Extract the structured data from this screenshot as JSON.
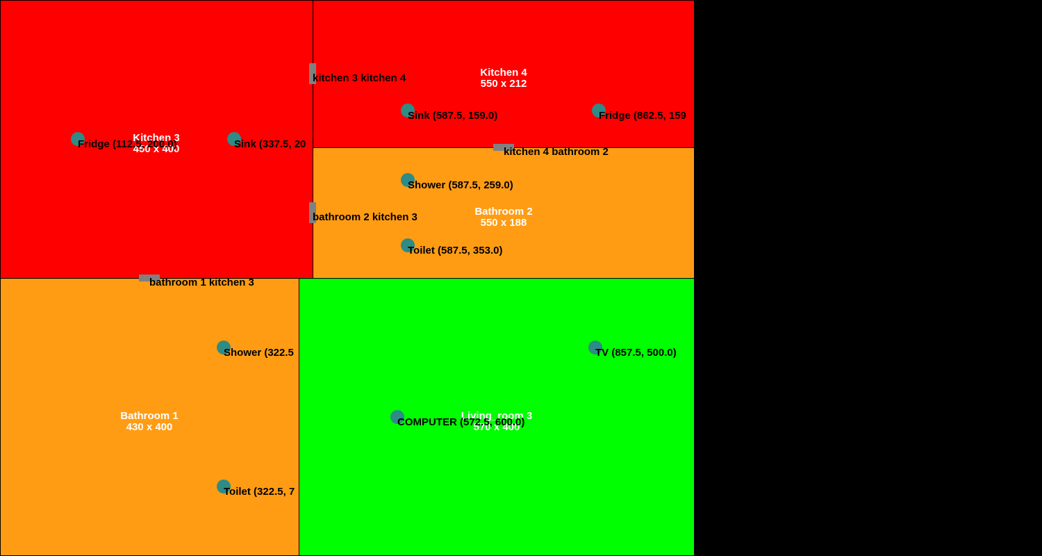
{
  "colors": {
    "kitchen": "#ff0000",
    "bathroom": "#ff9c14",
    "living_room": "#00ff00",
    "fixture": "#2e8b85",
    "door": "#808080",
    "background": "#000000"
  },
  "rooms": [
    {
      "id": "kitchen-3",
      "name": "Kitchen 3",
      "size": "450 x 400",
      "type": "kitchen"
    },
    {
      "id": "kitchen-4",
      "name": "Kitchen 4",
      "size": "550 x 212",
      "type": "kitchen"
    },
    {
      "id": "bathroom-2",
      "name": "Bathroom 2",
      "size": "550 x 188",
      "type": "bathroom"
    },
    {
      "id": "bathroom-1",
      "name": "Bathroom 1",
      "size": "430 x 400",
      "type": "bathroom"
    },
    {
      "id": "living-room-3",
      "name": "Living_room 3",
      "size": "570 x 400",
      "type": "living_room"
    }
  ],
  "doors": [
    {
      "id": "kitchen3-kitchen4",
      "label": "kitchen 3 kitchen 4"
    },
    {
      "id": "kitchen4-bathroom2",
      "label": "kitchen 4 bathroom 2"
    },
    {
      "id": "bathroom2-kitchen3",
      "label": "bathroom 2 kitchen 3"
    },
    {
      "id": "bathroom1-kitchen3",
      "label": "bathroom 1 kitchen 3"
    }
  ],
  "fixtures": [
    {
      "id": "fridge-k3",
      "label": "Fridge (112.5, 200.0)"
    },
    {
      "id": "sink-k3",
      "label": "Sink (337.5, 20"
    },
    {
      "id": "sink-k4",
      "label": "Sink (587.5, 159.0)"
    },
    {
      "id": "fridge-k4",
      "label": "Fridge (862.5, 159"
    },
    {
      "id": "shower-b2",
      "label": "Shower (587.5, 259.0)"
    },
    {
      "id": "toilet-b2",
      "label": "Toilet (587.5, 353.0)"
    },
    {
      "id": "shower-b1",
      "label": "Shower (322.5"
    },
    {
      "id": "toilet-b1",
      "label": "Toilet (322.5, 7"
    },
    {
      "id": "tv-lr3",
      "label": "TV (857.5, 500.0)"
    },
    {
      "id": "computer-lr3",
      "label": "COMPUTER (572.5, 600.0)"
    }
  ]
}
